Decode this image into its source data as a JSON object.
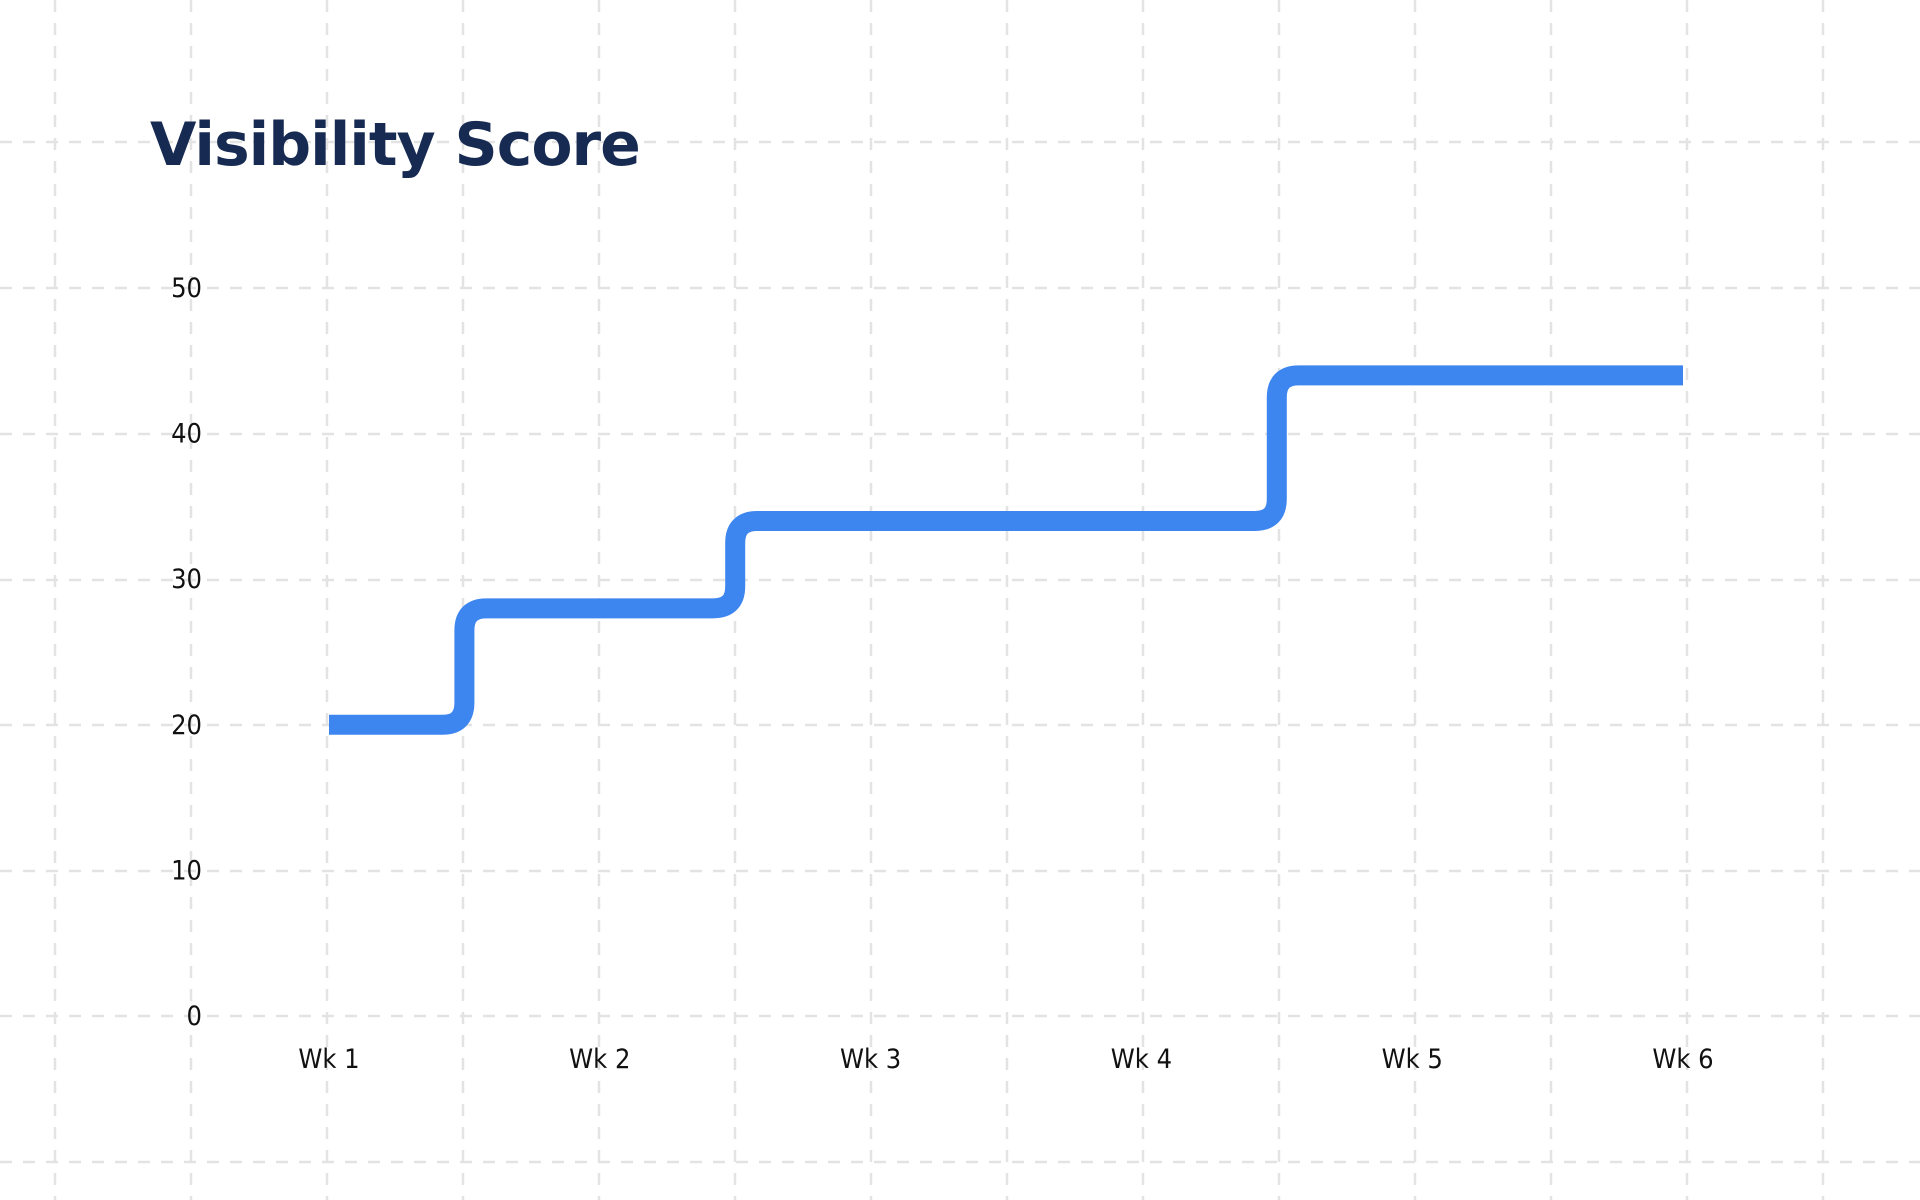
{
  "chart_data": {
    "type": "line",
    "step": "mid",
    "title": "Visibility Score",
    "xlabel": "",
    "ylabel": "",
    "categories": [
      "Wk 1",
      "Wk 2",
      "Wk 3",
      "Wk 4",
      "Wk 5",
      "Wk 6"
    ],
    "series": [
      {
        "values": [
          20,
          28,
          34,
          34,
          44,
          44
        ]
      }
    ],
    "ylim": [
      0,
      50
    ],
    "yticks": [
      0,
      10,
      20,
      30,
      40,
      50
    ],
    "grid": true,
    "legend": "none",
    "colors": {
      "line": "#3d85ef",
      "title": "#172a52",
      "grid": "#e3e3e3",
      "tick_text": "#111111"
    }
  }
}
